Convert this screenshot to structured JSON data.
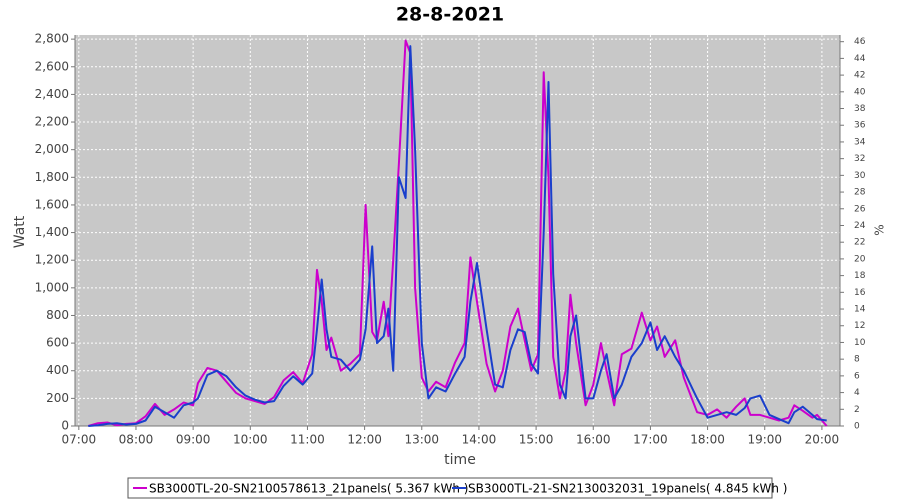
{
  "chart_data": {
    "type": "line",
    "title": "28-8-2021",
    "x_label": "time",
    "y_label": "Watt",
    "y2_label": "%",
    "x": [
      "07:10",
      "07:20",
      "07:30",
      "07:40",
      "07:50",
      "08:00",
      "08:10",
      "08:20",
      "08:30",
      "08:40",
      "08:50",
      "09:00",
      "09:05",
      "09:15",
      "09:25",
      "09:35",
      "09:45",
      "09:55",
      "10:05",
      "10:15",
      "10:25",
      "10:35",
      "10:45",
      "10:55",
      "11:05",
      "11:10",
      "11:15",
      "11:20",
      "11:25",
      "11:35",
      "11:45",
      "11:55",
      "12:01",
      "12:08",
      "12:13",
      "12:20",
      "12:25",
      "12:30",
      "12:36",
      "12:43",
      "12:48",
      "12:53",
      "13:00",
      "13:07",
      "13:15",
      "13:25",
      "13:35",
      "13:45",
      "13:51",
      "13:58",
      "14:08",
      "14:17",
      "14:25",
      "14:33",
      "14:41",
      "14:48",
      "14:55",
      "15:02",
      "15:08",
      "15:13",
      "15:18",
      "15:25",
      "15:31",
      "15:36",
      "15:42",
      "15:52",
      "16:00",
      "16:08",
      "16:14",
      "16:22",
      "16:30",
      "16:40",
      "16:51",
      "17:00",
      "17:07",
      "17:15",
      "17:26",
      "17:35",
      "17:49",
      "18:00",
      "18:10",
      "18:20",
      "18:30",
      "18:39",
      "18:45",
      "18:55",
      "19:05",
      "19:15",
      "19:25",
      "19:31",
      "19:40",
      "19:50",
      "19:55",
      "20:05"
    ],
    "series": [
      {
        "name": "SB3000TL-20-SN2100578613_21panels( 5.367 kWh )",
        "color": "#cc00cc",
        "values": [
          0,
          20,
          25,
          5,
          15,
          20,
          70,
          160,
          80,
          120,
          170,
          150,
          310,
          420,
          400,
          320,
          240,
          200,
          180,
          160,
          210,
          330,
          390,
          310,
          520,
          1130,
          900,
          550,
          640,
          400,
          450,
          520,
          1600,
          680,
          620,
          900,
          650,
          1200,
          1900,
          2790,
          2700,
          1000,
          350,
          250,
          320,
          280,
          460,
          600,
          1220,
          900,
          450,
          250,
          400,
          720,
          850,
          620,
          400,
          520,
          2560,
          1800,
          500,
          200,
          400,
          950,
          600,
          150,
          300,
          600,
          400,
          150,
          520,
          560,
          820,
          620,
          720,
          500,
          620,
          350,
          100,
          80,
          120,
          60,
          140,
          200,
          80,
          80,
          60,
          40,
          60,
          150,
          110,
          60,
          80,
          0
        ]
      },
      {
        "name": "SB3000TL-21-SN2130032031_19panels( 4.845 kWh )",
        "color": "#1a3fcc",
        "values": [
          0,
          5,
          15,
          20,
          10,
          15,
          40,
          140,
          100,
          60,
          150,
          170,
          200,
          370,
          400,
          360,
          280,
          220,
          190,
          170,
          180,
          290,
          360,
          300,
          380,
          700,
          1060,
          700,
          500,
          480,
          400,
          480,
          700,
          1300,
          600,
          650,
          850,
          400,
          1800,
          1650,
          2750,
          2000,
          600,
          200,
          280,
          250,
          380,
          500,
          900,
          1180,
          700,
          300,
          280,
          550,
          700,
          680,
          450,
          380,
          1400,
          2490,
          1100,
          300,
          200,
          650,
          800,
          200,
          200,
          400,
          520,
          200,
          300,
          500,
          600,
          750,
          550,
          650,
          500,
          400,
          200,
          60,
          80,
          100,
          80,
          130,
          200,
          220,
          80,
          50,
          20,
          100,
          140,
          80,
          50,
          40
        ]
      }
    ],
    "xlim": [
      "06:56",
      "20:19"
    ],
    "xticks": [
      "07:00",
      "08:00",
      "09:00",
      "10:00",
      "11:00",
      "12:00",
      "13:00",
      "14:00",
      "15:00",
      "16:00",
      "17:00",
      "18:00",
      "19:00",
      "20:00"
    ],
    "ylim": [
      0,
      2830
    ],
    "yticks": [
      0,
      200,
      400,
      600,
      800,
      {
        "value": 1000,
        "label": "1,000"
      },
      {
        "value": 1200,
        "label": "1,200"
      },
      {
        "value": 1400,
        "label": "1,400"
      },
      {
        "value": 1600,
        "label": "1,600"
      },
      {
        "value": 1800,
        "label": "1,800"
      },
      {
        "value": 2000,
        "label": "2,000"
      },
      {
        "value": 2200,
        "label": "2,200"
      },
      {
        "value": 2400,
        "label": "2,400"
      },
      {
        "value": 2600,
        "label": "2,600"
      },
      {
        "value": 2800,
        "label": "2,800"
      }
    ],
    "y2lim": [
      0,
      46.8
    ],
    "y2ticks": [
      0,
      2,
      4,
      6,
      8,
      10,
      12,
      14,
      16,
      18,
      20,
      22,
      24,
      26,
      28,
      30,
      32,
      34,
      36,
      38,
      40,
      42,
      44,
      46
    ],
    "grid": true,
    "legend": "bottom"
  }
}
